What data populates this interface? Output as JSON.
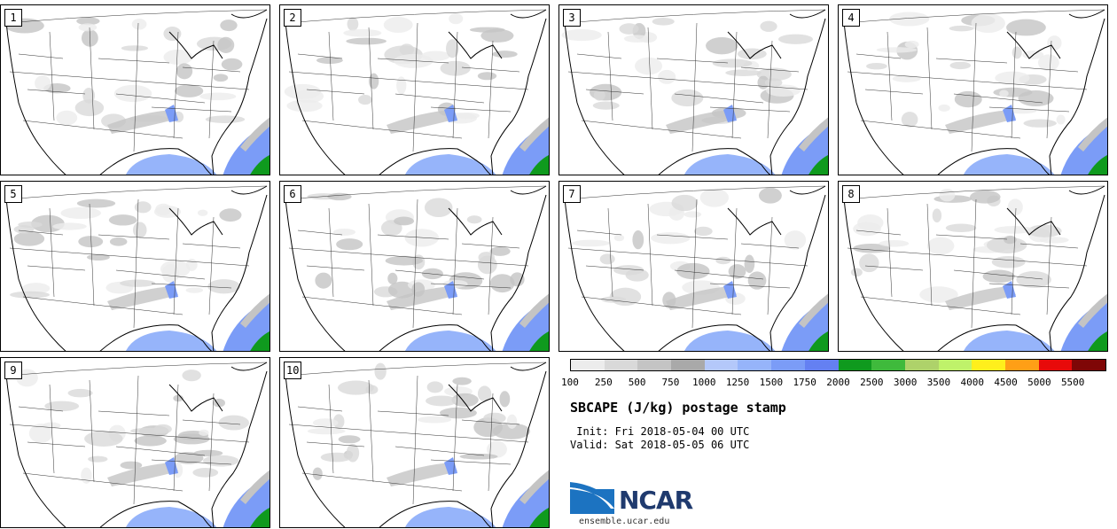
{
  "panels": [
    {
      "label": "1"
    },
    {
      "label": "2"
    },
    {
      "label": "3"
    },
    {
      "label": "4"
    },
    {
      "label": "5"
    },
    {
      "label": "6"
    },
    {
      "label": "7"
    },
    {
      "label": "8"
    },
    {
      "label": "9"
    },
    {
      "label": "10"
    }
  ],
  "colorbar": {
    "colors": [
      "#ececec",
      "#d9d9d9",
      "#c4c4c4",
      "#a9a9a9",
      "#b4c8fa",
      "#96b4fa",
      "#7b9cf7",
      "#6480f2",
      "#0f9a1e",
      "#3fba3c",
      "#aed26a",
      "#bff26a",
      "#ffef1c",
      "#ff9f16",
      "#e80a0a",
      "#7f0606"
    ],
    "labels": [
      "100",
      "250",
      "500",
      "750",
      "1000",
      "1250",
      "1500",
      "1750",
      "2000",
      "2500",
      "3000",
      "3500",
      "4000",
      "4500",
      "5000",
      "5500"
    ]
  },
  "title": "SBCAPE (J/kg) postage stamp",
  "init": " Init: Fri 2018-05-04 00 UTC",
  "valid": "Valid: Sat 2018-05-05 06 UTC",
  "logo": {
    "text": "NCAR",
    "url": "ensemble.ucar.edu"
  }
}
